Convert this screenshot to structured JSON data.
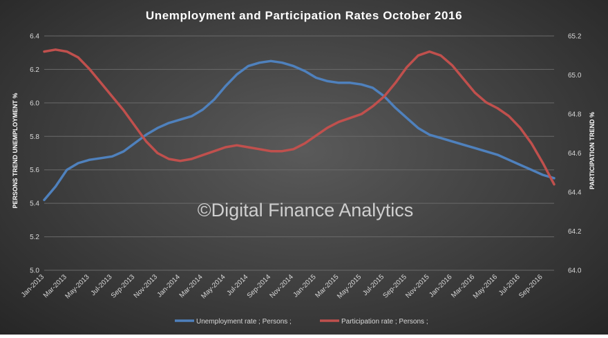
{
  "chart_data": {
    "type": "line",
    "title": "Unemployment and Participation Rates October 2016",
    "watermark": "©Digital Finance Analytics",
    "y_label_left": "PERSONS TREND UNEMPLOYMENT %",
    "y_label_right": "PARTICIPATION TREND %",
    "ylim_left": [
      5.0,
      6.4
    ],
    "ylim_right": [
      64.0,
      65.2
    ],
    "yticks_left": [
      "5.0",
      "5.2",
      "5.4",
      "5.6",
      "5.8",
      "6.0",
      "6.2",
      "6.4"
    ],
    "yticks_right": [
      "64.0",
      "64.2",
      "64.4",
      "64.6",
      "64.8",
      "65.0",
      "65.2"
    ],
    "grid": true,
    "legend_position": "bottom",
    "x_tick_labels": [
      "Jan-2013",
      "Mar-2013",
      "May-2013",
      "Jul-2013",
      "Sep-2013",
      "Nov-2013",
      "Jan-2014",
      "Mar-2014",
      "May-2014",
      "Jul-2014",
      "Sep-2014",
      "Nov-2014",
      "Jan-2015",
      "Mar-2015",
      "May-2015",
      "Jul-2015",
      "Sep-2015",
      "Nov-2015",
      "Jan-2016",
      "Mar-2016",
      "May-2016",
      "Jul-2016",
      "Sep-2016"
    ],
    "x": [
      "Jan-2013",
      "Feb-2013",
      "Mar-2013",
      "Apr-2013",
      "May-2013",
      "Jun-2013",
      "Jul-2013",
      "Aug-2013",
      "Sep-2013",
      "Oct-2013",
      "Nov-2013",
      "Dec-2013",
      "Jan-2014",
      "Feb-2014",
      "Mar-2014",
      "Apr-2014",
      "May-2014",
      "Jun-2014",
      "Jul-2014",
      "Aug-2014",
      "Sep-2014",
      "Oct-2014",
      "Nov-2014",
      "Dec-2014",
      "Jan-2015",
      "Feb-2015",
      "Mar-2015",
      "Apr-2015",
      "May-2015",
      "Jun-2015",
      "Jul-2015",
      "Aug-2015",
      "Sep-2015",
      "Oct-2015",
      "Nov-2015",
      "Dec-2015",
      "Jan-2016",
      "Feb-2016",
      "Mar-2016",
      "Apr-2016",
      "May-2016",
      "Jun-2016",
      "Jul-2016",
      "Aug-2016",
      "Sep-2016",
      "Oct-2016"
    ],
    "series": [
      {
        "name": "Unemployment rate ;  Persons ;",
        "axis": "left",
        "color": "#4f81bd",
        "values": [
          5.42,
          5.5,
          5.6,
          5.64,
          5.66,
          5.67,
          5.68,
          5.71,
          5.76,
          5.81,
          5.85,
          5.88,
          5.9,
          5.92,
          5.96,
          6.02,
          6.1,
          6.17,
          6.22,
          6.24,
          6.25,
          6.24,
          6.22,
          6.19,
          6.15,
          6.13,
          6.12,
          6.12,
          6.11,
          6.09,
          6.04,
          5.97,
          5.91,
          5.85,
          5.81,
          5.79,
          5.77,
          5.75,
          5.73,
          5.71,
          5.69,
          5.66,
          5.63,
          5.6,
          5.57,
          5.55
        ]
      },
      {
        "name": "Participation rate ;  Persons ;",
        "axis": "right",
        "color": "#c0504d",
        "values": [
          65.12,
          65.13,
          65.12,
          65.09,
          65.03,
          64.96,
          64.89,
          64.82,
          64.74,
          64.66,
          64.6,
          64.57,
          64.56,
          64.57,
          64.59,
          64.61,
          64.63,
          64.64,
          64.63,
          64.62,
          64.61,
          64.61,
          64.62,
          64.65,
          64.69,
          64.73,
          64.76,
          64.78,
          64.8,
          64.84,
          64.89,
          64.96,
          65.04,
          65.1,
          65.12,
          65.1,
          65.05,
          64.98,
          64.91,
          64.86,
          64.83,
          64.79,
          64.73,
          64.65,
          64.55,
          64.44
        ]
      }
    ]
  }
}
